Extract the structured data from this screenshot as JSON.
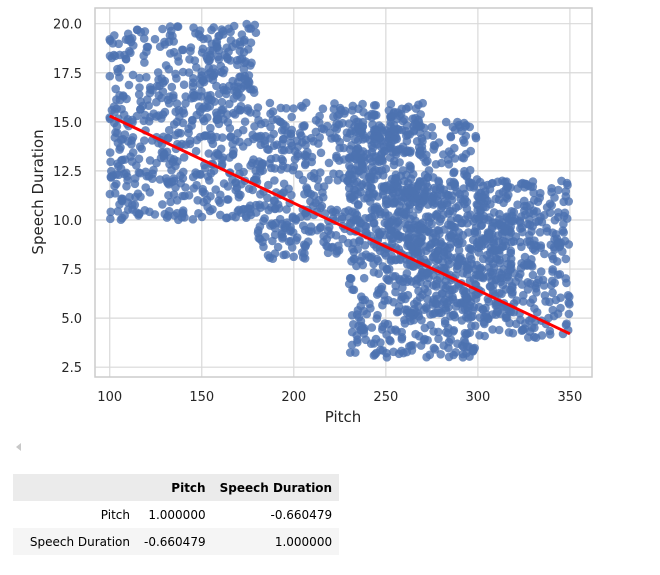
{
  "chart_data": {
    "type": "scatter",
    "xlabel": "Pitch",
    "ylabel": "Speech Duration",
    "xlim": [
      92,
      362
    ],
    "ylim": [
      2.0,
      20.8
    ],
    "xticks": [
      100,
      150,
      200,
      250,
      300,
      350
    ],
    "yticks": [
      2.5,
      5.0,
      7.5,
      10.0,
      12.5,
      15.0,
      17.5,
      20.0
    ],
    "xtick_labels": [
      "100",
      "150",
      "200",
      "250",
      "300",
      "350"
    ],
    "ytick_labels": [
      "2.5",
      "5.0",
      "7.5",
      "10.0",
      "12.5",
      "15.0",
      "17.5",
      "20.0"
    ],
    "grid": true,
    "point_color": "#4c72b0",
    "regression_color": "#ff0000",
    "clusters": [
      {
        "x_range": [
          100,
          180
        ],
        "y_range": [
          10,
          20
        ]
      },
      {
        "x_range": [
          180,
          270
        ],
        "y_range": [
          8,
          16
        ]
      },
      {
        "x_range": [
          260,
          320
        ],
        "y_range": [
          5,
          12
        ]
      },
      {
        "x_range": [
          230,
          300
        ],
        "y_range": [
          3,
          15
        ]
      },
      {
        "x_range": [
          300,
          350
        ],
        "y_range": [
          4,
          12
        ]
      }
    ],
    "regression_line": {
      "x": [
        100,
        350
      ],
      "y": [
        15.3,
        4.2
      ]
    }
  },
  "table": {
    "columns": [
      "",
      "Pitch",
      "Speech Duration"
    ],
    "rows": [
      {
        "label": "Pitch",
        "values": [
          "1.000000",
          "-0.660479"
        ]
      },
      {
        "label": "Speech Duration",
        "values": [
          "-0.660479",
          "1.000000"
        ]
      }
    ]
  }
}
